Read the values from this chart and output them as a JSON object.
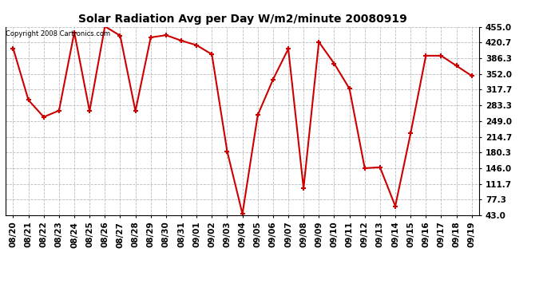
{
  "title": "Solar Radiation Avg per Day W/m2/minute 20080919",
  "copyright": "Copyright 2008 Cartronics.com",
  "dates": [
    "08/20",
    "08/21",
    "08/22",
    "08/23",
    "08/24",
    "08/25",
    "08/26",
    "08/27",
    "08/28",
    "08/29",
    "08/30",
    "08/31",
    "09/01",
    "09/02",
    "09/03",
    "09/04",
    "09/05",
    "09/06",
    "09/07",
    "09/08",
    "09/09",
    "09/10",
    "09/11",
    "09/12",
    "09/13",
    "09/14",
    "09/15",
    "09/16",
    "09/17",
    "09/18",
    "09/19"
  ],
  "values": [
    408,
    295,
    258,
    272,
    443,
    271,
    456,
    436,
    271,
    432,
    437,
    425,
    415,
    395,
    183,
    46,
    262,
    340,
    407,
    102,
    422,
    375,
    320,
    146,
    148,
    63,
    222,
    392,
    392,
    370,
    348
  ],
  "line_color": "#cc0000",
  "marker_color": "#cc0000",
  "bg_color": "#ffffff",
  "grid_color": "#aaaaaa",
  "ymin": 43.0,
  "ymax": 455.0,
  "yticks": [
    43.0,
    77.3,
    111.7,
    146.0,
    180.3,
    214.7,
    249.0,
    283.3,
    317.7,
    352.0,
    386.3,
    420.7,
    455.0
  ]
}
